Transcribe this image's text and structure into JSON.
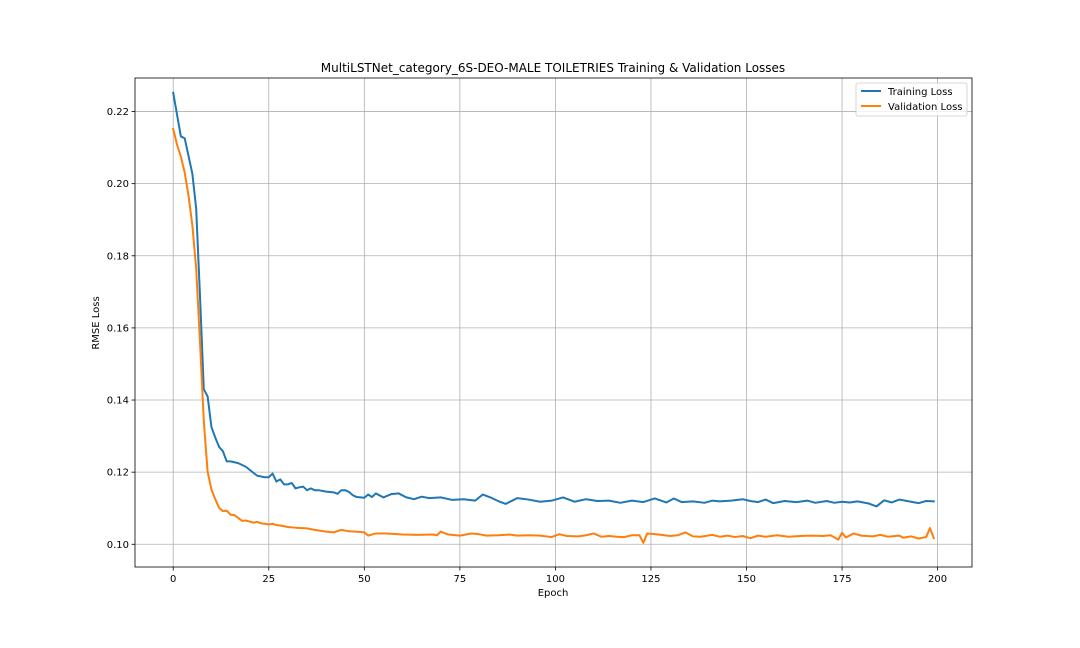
{
  "chart_data": {
    "type": "line",
    "title": "MultiLSTNet_category_6S-DEO-MALE TOILETRIES Training & Validation Losses",
    "xlabel": "Epoch",
    "ylabel": "RMSE Loss",
    "xlim": [
      -10,
      209
    ],
    "ylim": [
      0.0937,
      0.2293
    ],
    "xticks": [
      0,
      25,
      50,
      75,
      100,
      125,
      150,
      175,
      200
    ],
    "yticks": [
      0.1,
      0.12,
      0.14,
      0.16,
      0.18,
      0.2,
      0.22
    ],
    "ytick_labels": [
      "0.10",
      "0.12",
      "0.14",
      "0.16",
      "0.18",
      "0.20",
      "0.22"
    ],
    "grid": true,
    "legend_position": "top-right",
    "series": [
      {
        "name": "Training Loss",
        "color": "#1f77b4",
        "x": [
          0,
          2,
          3,
          5,
          6,
          7,
          8,
          9,
          10,
          11,
          12,
          13,
          14,
          15,
          17,
          19,
          21,
          22,
          24,
          25,
          26,
          27,
          28,
          29,
          30,
          31,
          32,
          33,
          34,
          35,
          36,
          37,
          38,
          40,
          42,
          43,
          44,
          45,
          46,
          47,
          48,
          49,
          50,
          51,
          52,
          53,
          55,
          57,
          59,
          61,
          63,
          65,
          67,
          70,
          73,
          76,
          79,
          81,
          83,
          85,
          87,
          90,
          93,
          96,
          99,
          102,
          105,
          108,
          111,
          114,
          117,
          120,
          123,
          126,
          129,
          131,
          133,
          136,
          139,
          141,
          143,
          146,
          149,
          151,
          153,
          155,
          157,
          160,
          163,
          166,
          168,
          171,
          173,
          175,
          177,
          179,
          182,
          184,
          186,
          188,
          190,
          192,
          195,
          197,
          199
        ],
        "values": [
          0.2252,
          0.2131,
          0.2126,
          0.2028,
          0.1932,
          0.169,
          0.143,
          0.141,
          0.1325,
          0.1296,
          0.127,
          0.1258,
          0.123,
          0.123,
          0.1225,
          0.1215,
          0.1198,
          0.119,
          0.1186,
          0.1186,
          0.1196,
          0.1174,
          0.118,
          0.1166,
          0.1166,
          0.117,
          0.1155,
          0.1158,
          0.116,
          0.115,
          0.1155,
          0.115,
          0.115,
          0.1146,
          0.1144,
          0.114,
          0.115,
          0.115,
          0.1145,
          0.1136,
          0.1131,
          0.113,
          0.1129,
          0.1138,
          0.1131,
          0.1141,
          0.113,
          0.1139,
          0.1141,
          0.113,
          0.1125,
          0.1132,
          0.1128,
          0.113,
          0.1123,
          0.1125,
          0.1121,
          0.1138,
          0.113,
          0.112,
          0.1112,
          0.1128,
          0.1124,
          0.1118,
          0.1121,
          0.113,
          0.1118,
          0.1125,
          0.112,
          0.1121,
          0.1115,
          0.1121,
          0.1117,
          0.1127,
          0.1116,
          0.1127,
          0.1117,
          0.1119,
          0.1115,
          0.1121,
          0.1119,
          0.1121,
          0.1125,
          0.112,
          0.1117,
          0.1124,
          0.1114,
          0.112,
          0.1117,
          0.1121,
          0.1115,
          0.112,
          0.1115,
          0.1118,
          0.1116,
          0.1119,
          0.1113,
          0.1105,
          0.1122,
          0.1116,
          0.1124,
          0.112,
          0.1114,
          0.112,
          0.1119
        ]
      },
      {
        "name": "Validation Loss",
        "color": "#ff7f0e",
        "x": [
          0,
          1,
          2,
          3,
          4,
          5,
          6,
          7,
          8,
          9,
          10,
          11,
          12,
          13,
          14,
          15,
          16,
          17,
          18,
          19,
          20,
          21,
          22,
          23,
          24,
          25,
          26,
          27,
          28,
          30,
          32,
          35,
          37,
          40,
          42,
          44,
          46,
          49,
          50,
          51,
          53,
          56,
          60,
          64,
          68,
          69,
          70,
          72,
          75,
          78,
          80,
          82,
          85,
          88,
          90,
          93,
          96,
          99,
          101,
          103,
          106,
          108,
          110,
          112,
          114,
          116,
          118,
          120,
          122,
          123,
          124,
          127,
          130,
          132,
          134,
          136,
          138,
          141,
          143,
          145,
          147,
          149,
          151,
          153,
          155,
          158,
          161,
          164,
          167,
          170,
          172,
          174,
          175,
          176,
          178,
          180,
          183,
          185,
          187,
          189,
          190,
          191,
          193,
          195,
          197,
          198,
          199
        ],
        "values": [
          0.2152,
          0.2108,
          0.2075,
          0.2031,
          0.1967,
          0.1885,
          0.1766,
          0.1562,
          0.1342,
          0.1201,
          0.1152,
          0.1125,
          0.1101,
          0.1092,
          0.1093,
          0.1082,
          0.1081,
          0.1073,
          0.1065,
          0.1066,
          0.1063,
          0.106,
          0.1062,
          0.1058,
          0.1057,
          0.1055,
          0.1057,
          0.1053,
          0.1052,
          0.1048,
          0.1046,
          0.1044,
          0.104,
          0.1035,
          0.1033,
          0.104,
          0.1036,
          0.1034,
          0.1033,
          0.1024,
          0.103,
          0.103,
          0.1027,
          0.1026,
          0.1027,
          0.1025,
          0.1035,
          0.1027,
          0.1024,
          0.103,
          0.1028,
          0.1024,
          0.1025,
          0.1027,
          0.1024,
          0.1025,
          0.1024,
          0.102,
          0.1028,
          0.1023,
          0.1022,
          0.1025,
          0.103,
          0.1021,
          0.1023,
          0.1021,
          0.102,
          0.1025,
          0.1025,
          0.1004,
          0.103,
          0.1027,
          0.1023,
          0.1025,
          0.1033,
          0.1022,
          0.1021,
          0.1026,
          0.1021,
          0.1024,
          0.102,
          0.1023,
          0.1017,
          0.1024,
          0.1021,
          0.1025,
          0.1021,
          0.1023,
          0.1024,
          0.1023,
          0.1025,
          0.1013,
          0.1032,
          0.1019,
          0.103,
          0.1024,
          0.1022,
          0.1026,
          0.1021,
          0.1023,
          0.1024,
          0.1018,
          0.1022,
          0.1016,
          0.102,
          0.1045,
          0.1017
        ]
      }
    ]
  }
}
